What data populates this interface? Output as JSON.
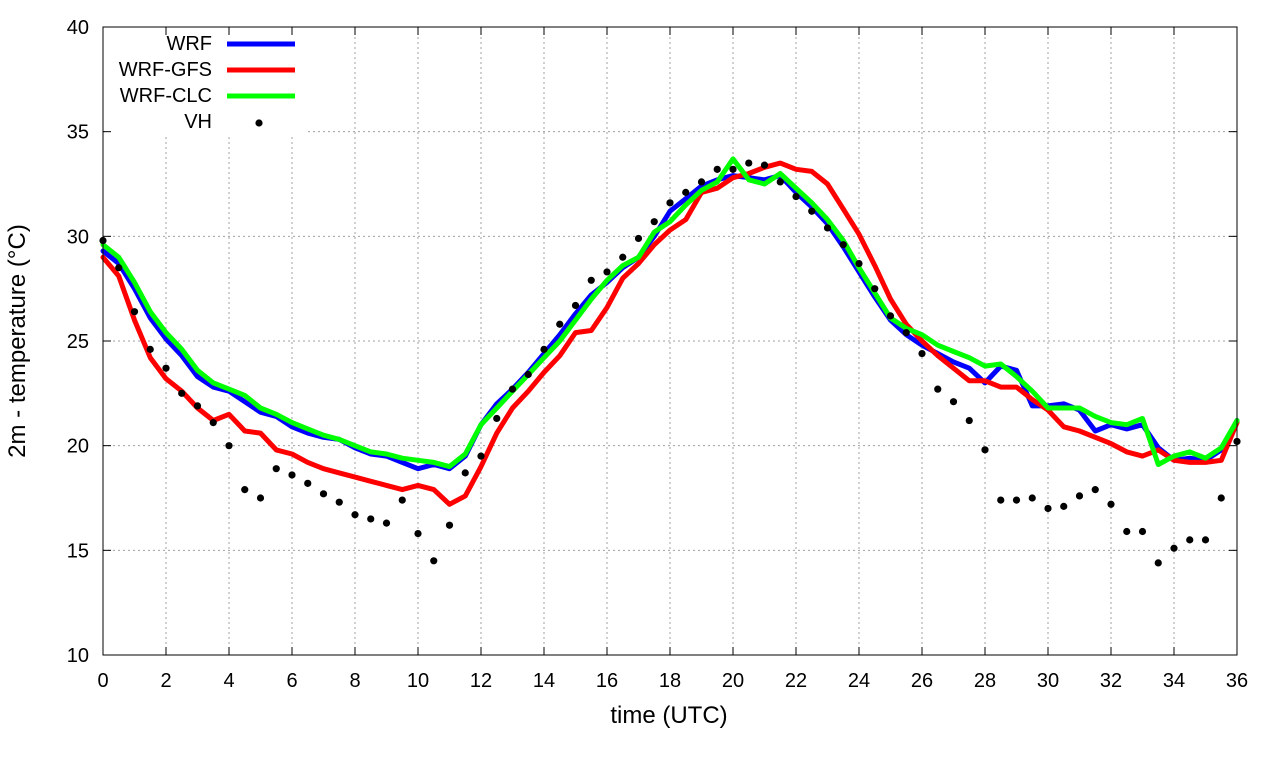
{
  "chart_data": {
    "type": "line",
    "xlabel": "time (UTC)",
    "ylabel": "2m - temperature (°C)",
    "xlim": [
      0,
      36
    ],
    "ylim": [
      10,
      40
    ],
    "xticks": [
      0,
      2,
      4,
      6,
      8,
      10,
      12,
      14,
      16,
      18,
      20,
      22,
      24,
      26,
      28,
      30,
      32,
      34,
      36
    ],
    "yticks": [
      10,
      15,
      20,
      25,
      30,
      35,
      40
    ],
    "grid": true,
    "legend_position": "top-left",
    "series": [
      {
        "name": "WRF",
        "style": "line",
        "color": "#0000ff",
        "x": [
          0,
          0.5,
          1,
          1.5,
          2,
          2.5,
          3,
          3.5,
          4,
          4.5,
          5,
          5.5,
          6,
          6.5,
          7,
          7.5,
          8,
          8.5,
          9,
          9.5,
          10,
          10.5,
          11,
          11.5,
          12,
          12.5,
          13,
          13.5,
          14,
          14.5,
          15,
          15.5,
          16,
          16.5,
          17,
          17.5,
          18,
          18.5,
          19,
          19.5,
          20,
          20.5,
          21,
          21.5,
          22,
          22.5,
          23,
          23.5,
          24,
          24.5,
          25,
          25.5,
          26,
          26.5,
          27,
          27.5,
          28,
          28.5,
          29,
          29.5,
          30,
          30.5,
          31,
          31.5,
          32,
          32.5,
          33,
          33.5,
          34,
          34.5,
          35,
          35.5,
          36
        ],
        "y": [
          29.3,
          28.7,
          27.5,
          26.1,
          25.1,
          24.3,
          23.3,
          22.8,
          22.6,
          22.1,
          21.6,
          21.4,
          20.9,
          20.6,
          20.4,
          20.3,
          19.9,
          19.6,
          19.5,
          19.2,
          18.9,
          19.1,
          18.9,
          19.5,
          21.0,
          22.0,
          22.7,
          23.5,
          24.4,
          25.3,
          26.3,
          27.2,
          27.8,
          28.5,
          29.0,
          30.0,
          31.2,
          31.8,
          32.4,
          32.7,
          32.9,
          32.8,
          32.7,
          32.9,
          32.1,
          31.4,
          30.6,
          29.5,
          28.3,
          27.1,
          26.0,
          25.3,
          24.8,
          24.4,
          24.0,
          23.7,
          23.0,
          23.8,
          23.6,
          21.9,
          21.9,
          22.0,
          21.7,
          20.7,
          21.0,
          20.8,
          21.0,
          19.9,
          19.3,
          19.4,
          19.3,
          19.8,
          21.2
        ]
      },
      {
        "name": "WRF-GFS",
        "style": "line",
        "color": "#ff0000",
        "x": [
          0,
          0.5,
          1,
          1.5,
          2,
          2.5,
          3,
          3.5,
          4,
          4.5,
          5,
          5.5,
          6,
          6.5,
          7,
          7.5,
          8,
          8.5,
          9,
          9.5,
          10,
          10.5,
          11,
          11.5,
          12,
          12.5,
          13,
          13.5,
          14,
          14.5,
          15,
          15.5,
          16,
          16.5,
          17,
          17.5,
          18,
          18.5,
          19,
          19.5,
          20,
          20.5,
          21,
          21.5,
          22,
          22.5,
          23,
          23.5,
          24,
          24.5,
          25,
          25.5,
          26,
          26.5,
          27,
          27.5,
          28,
          28.5,
          29,
          29.5,
          30,
          30.5,
          31,
          31.5,
          32,
          32.5,
          33,
          33.5,
          34,
          34.5,
          35,
          35.5,
          36
        ],
        "y": [
          29.0,
          28.1,
          26.0,
          24.2,
          23.2,
          22.6,
          21.8,
          21.2,
          21.5,
          20.7,
          20.6,
          19.8,
          19.6,
          19.2,
          18.9,
          18.7,
          18.5,
          18.3,
          18.1,
          17.9,
          18.1,
          17.9,
          17.2,
          17.6,
          19.0,
          20.6,
          21.8,
          22.6,
          23.5,
          24.3,
          25.4,
          25.5,
          26.6,
          28.0,
          28.7,
          29.6,
          30.3,
          30.8,
          32.1,
          32.3,
          32.8,
          33.0,
          33.3,
          33.5,
          33.2,
          33.1,
          32.5,
          31.3,
          30.1,
          28.6,
          27.0,
          25.8,
          25.0,
          24.3,
          23.7,
          23.1,
          23.1,
          22.8,
          22.8,
          22.2,
          21.7,
          20.9,
          20.7,
          20.4,
          20.1,
          19.7,
          19.5,
          19.8,
          19.3,
          19.2,
          19.2,
          19.3,
          21.1
        ]
      },
      {
        "name": "WRF-CLC",
        "style": "line",
        "color": "#00ff00",
        "x": [
          0,
          0.5,
          1,
          1.5,
          2,
          2.5,
          3,
          3.5,
          4,
          4.5,
          5,
          5.5,
          6,
          6.5,
          7,
          7.5,
          8,
          8.5,
          9,
          9.5,
          10,
          10.5,
          11,
          11.5,
          12,
          12.5,
          13,
          13.5,
          14,
          14.5,
          15,
          15.5,
          16,
          16.5,
          17,
          17.5,
          18,
          18.5,
          19,
          19.5,
          20,
          20.5,
          21,
          21.5,
          22,
          22.5,
          23,
          23.5,
          24,
          24.5,
          25,
          25.5,
          26,
          26.5,
          27,
          27.5,
          28,
          28.5,
          29,
          29.5,
          30,
          30.5,
          31,
          31.5,
          32,
          32.5,
          33,
          33.5,
          34,
          34.5,
          35,
          35.5,
          36
        ],
        "y": [
          29.6,
          29.0,
          27.8,
          26.4,
          25.4,
          24.6,
          23.6,
          23.0,
          22.7,
          22.4,
          21.8,
          21.5,
          21.1,
          20.8,
          20.5,
          20.3,
          20.0,
          19.7,
          19.6,
          19.4,
          19.3,
          19.2,
          19.0,
          19.6,
          21.0,
          21.8,
          22.6,
          23.4,
          24.2,
          25.0,
          26.0,
          27.0,
          27.9,
          28.6,
          29.0,
          30.2,
          30.7,
          31.5,
          32.2,
          32.6,
          33.7,
          32.7,
          32.5,
          33.0,
          32.3,
          31.6,
          30.8,
          29.8,
          28.5,
          27.3,
          26.1,
          25.6,
          25.3,
          24.8,
          24.5,
          24.2,
          23.8,
          23.9,
          23.3,
          22.6,
          21.8,
          21.8,
          21.8,
          21.4,
          21.1,
          21.0,
          21.3,
          19.1,
          19.5,
          19.7,
          19.4,
          19.9,
          21.2
        ]
      },
      {
        "name": "VH",
        "style": "points",
        "color": "#000000",
        "x": [
          0,
          0.5,
          1,
          1.5,
          2,
          2.5,
          3,
          3.5,
          4,
          4.5,
          5,
          5.5,
          6,
          6.5,
          7,
          7.5,
          8,
          8.5,
          9,
          9.5,
          10,
          10.5,
          11,
          11.5,
          12,
          12.5,
          13,
          13.5,
          14,
          14.5,
          15,
          15.5,
          16,
          16.5,
          17,
          17.5,
          18,
          18.5,
          19,
          19.5,
          20,
          20.5,
          21,
          21.5,
          22,
          22.5,
          23,
          23.5,
          24,
          24.5,
          25,
          25.5,
          26,
          26.5,
          27,
          27.5,
          28,
          28.5,
          29,
          29.5,
          30,
          30.5,
          31,
          31.5,
          32,
          32.5,
          33,
          33.5,
          34,
          34.5,
          35,
          35.5,
          36
        ],
        "y": [
          29.8,
          28.5,
          26.4,
          24.6,
          23.7,
          22.5,
          21.9,
          21.1,
          20.0,
          17.9,
          17.5,
          18.9,
          18.6,
          18.2,
          17.7,
          17.3,
          16.7,
          16.5,
          16.3,
          17.4,
          15.8,
          14.5,
          16.2,
          18.7,
          19.5,
          21.3,
          22.7,
          23.4,
          24.6,
          25.8,
          26.7,
          27.9,
          28.3,
          29.0,
          29.9,
          30.7,
          31.6,
          32.1,
          32.6,
          33.2,
          33.2,
          33.5,
          33.4,
          32.6,
          31.9,
          31.2,
          30.4,
          29.6,
          28.7,
          27.5,
          26.2,
          25.4,
          24.4,
          22.7,
          22.1,
          21.2,
          19.8,
          17.4,
          17.4,
          17.5,
          17.0,
          17.1,
          17.6,
          17.9,
          17.2,
          15.9,
          15.9,
          14.4,
          15.1,
          15.5,
          15.5,
          17.5,
          20.2
        ]
      }
    ]
  }
}
